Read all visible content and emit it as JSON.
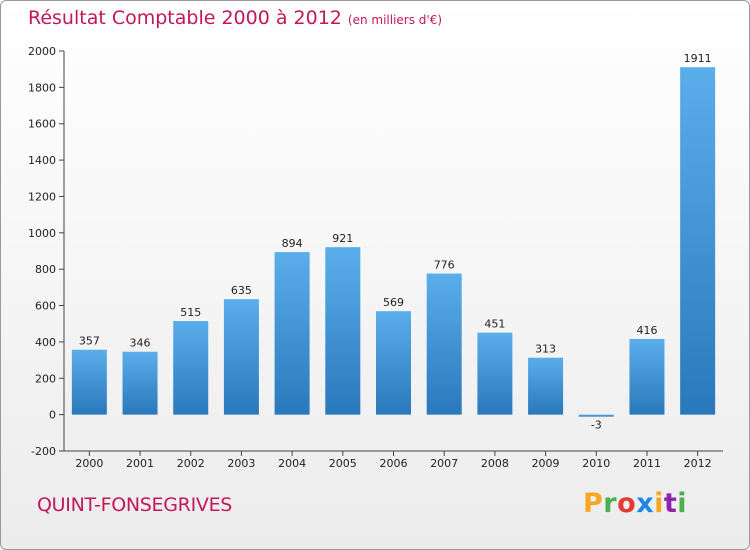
{
  "chart_data": {
    "type": "bar",
    "title": "Résultat Comptable 2000 à 2012",
    "subtitle": "(en milliers d'€)",
    "categories": [
      "2000",
      "2001",
      "2002",
      "2003",
      "2004",
      "2005",
      "2006",
      "2007",
      "2008",
      "2009",
      "2010",
      "2011",
      "2012"
    ],
    "values": [
      357,
      346,
      515,
      635,
      894,
      921,
      569,
      776,
      451,
      313,
      -3,
      416,
      1911
    ],
    "ylim": [
      -200,
      2000
    ],
    "yticks": [
      -200,
      0,
      200,
      400,
      600,
      800,
      1000,
      1200,
      1400,
      1600,
      1800,
      2000
    ],
    "xlabel": "",
    "ylabel": "",
    "grid": false,
    "bar_color": "#3a8fd6"
  },
  "location": "QUINT-FONSEGRIVES",
  "brand": {
    "letters": [
      "P",
      "r",
      "o",
      "x",
      "i",
      "t",
      "i"
    ],
    "colors": [
      "#f5a623",
      "#4caf50",
      "#e53935",
      "#1e88e5",
      "#f5a623",
      "#8e24aa",
      "#4caf50"
    ]
  }
}
